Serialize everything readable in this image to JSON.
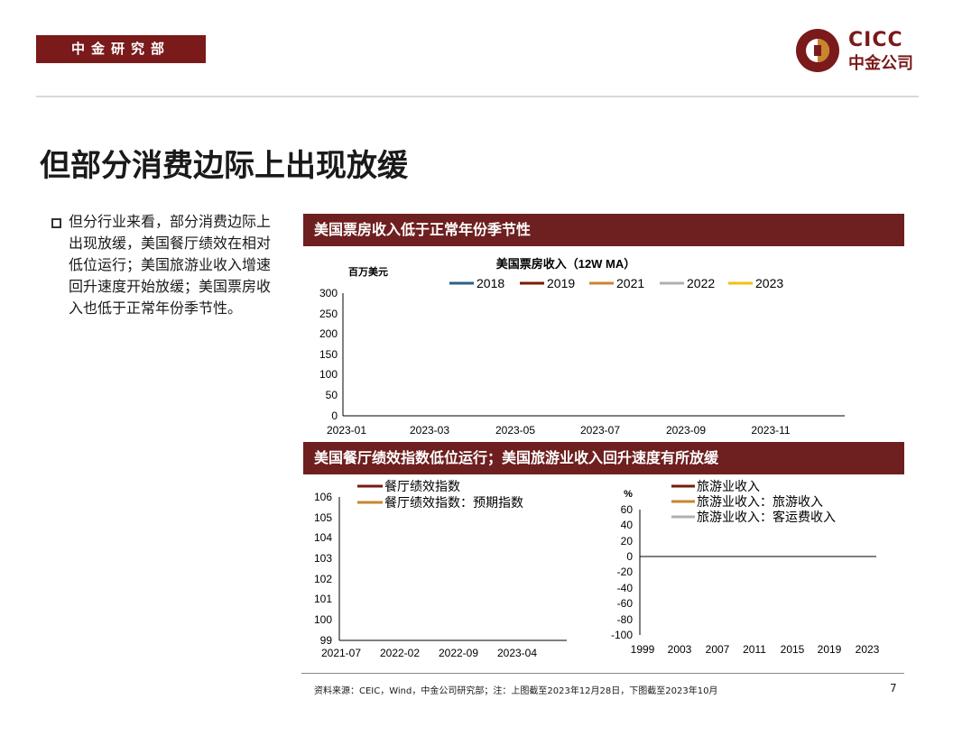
{
  "header": {
    "badge": "中金研究部",
    "logo_en": "CICC",
    "logo_cn": "中金公司"
  },
  "title": "但部分消费边际上出现放缓",
  "bullet_text": "但分行业来看，部分消费边际上出现放缓，美国餐厅绩效在相对低位运行；美国旅游业收入增速回升速度开始放缓；美国票房收入也低于正常年份季节性。",
  "panel1": {
    "bar_title": "美国票房收入低于正常年份季节性"
  },
  "panel2": {
    "bar_title": "美国餐厅绩效指数低位运行；美国旅游业收入回升速度有所放缓"
  },
  "chart_data": [
    {
      "type": "line",
      "title": "美国票房收入（12W MA）",
      "ylabel": "百万美元",
      "xlabel": "",
      "ylim": [
        0,
        300
      ],
      "yticks": [
        "0",
        "50",
        "100",
        "150",
        "200",
        "250",
        "300"
      ],
      "xticks": [
        "2023-01",
        "2023-03",
        "2023-05",
        "2023-07",
        "2023-09",
        "2023-11"
      ],
      "grid": false,
      "legend": "top",
      "series": [
        {
          "name": "2018",
          "color": "#2e5f8a"
        },
        {
          "name": "2019",
          "color": "#7a1a0a"
        },
        {
          "name": "2021",
          "color": "#c8852e"
        },
        {
          "name": "2022",
          "color": "#b0b0b0"
        },
        {
          "name": "2023",
          "color": "#f2c10f"
        }
      ]
    },
    {
      "type": "line",
      "ylim": [
        99,
        106
      ],
      "yticks": [
        "99",
        "100",
        "101",
        "102",
        "103",
        "104",
        "105",
        "106"
      ],
      "xticks": [
        "2021-07",
        "2022-02",
        "2022-09",
        "2023-04"
      ],
      "grid": false,
      "legend": "top-left",
      "series": [
        {
          "name": "餐厅绩效指数",
          "color": "#7a1a0a"
        },
        {
          "name": "餐厅绩效指数：预期指数",
          "color": "#c8852e"
        }
      ]
    },
    {
      "type": "line",
      "ylabel": "%",
      "ylim": [
        -100,
        60
      ],
      "yticks": [
        "-100",
        "-80",
        "-60",
        "-40",
        "-20",
        "0",
        "20",
        "40",
        "60"
      ],
      "xticks": [
        "1999",
        "2003",
        "2007",
        "2011",
        "2015",
        "2019",
        "2023"
      ],
      "grid": false,
      "legend": "top-left",
      "series": [
        {
          "name": "旅游业收入",
          "color": "#7a1a0a"
        },
        {
          "name": "旅游业收入：旅游收入",
          "color": "#c8852e"
        },
        {
          "name": "旅游业收入：客运费收入",
          "color": "#b0b0b0"
        }
      ]
    }
  ],
  "footer": {
    "source": "资料来源：CEIC，Wind，中金公司研究部；注：上图截至2023年12月28日，下图截至2023年10月",
    "page": "7"
  }
}
